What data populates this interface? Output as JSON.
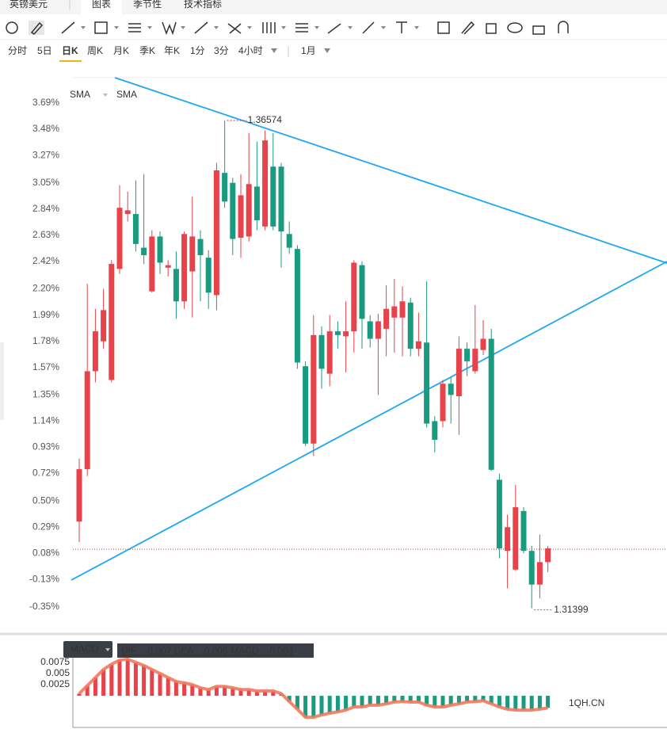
{
  "tabs": [
    "英镑美元",
    "图表",
    "季节性",
    "技术指标"
  ],
  "periods": [
    "分时",
    "5日",
    "日K",
    "周K",
    "月K",
    "季K",
    "年K",
    "1分",
    "3分",
    "4小时"
  ],
  "range_select": "1月",
  "watermark": "1QH.CN",
  "chart_data": [
    {
      "type": "candlestick",
      "legend": [
        "SMA",
        "SMA"
      ],
      "up_color": "#e8424a",
      "down_color": "#1a9a7e",
      "open": [
        0.335,
        0.755,
        1.54,
        1.78,
        1.47,
        2.36,
        2.8,
        2.8,
        2.53,
        2.18,
        2.62,
        2.37,
        2.36,
        2.1,
        2.34,
        2.6,
        2.45,
        2.15,
        3.13,
        3.05,
        2.61,
        2.62,
        3.02,
        2.7,
        3.18,
        3.18,
        2.64,
        2.52,
        1.58,
        0.96,
        1.83,
        1.52,
        1.86,
        1.82,
        1.86,
        2.39,
        1.94,
        1.8,
        1.88,
        1.97,
        1.97,
        2.09,
        1.72,
        1.77,
        1.14,
        1.14,
        1.44,
        1.34,
        1.72,
        1.54,
        1.71,
        1.8,
        0.67,
        0.1,
        -0.05,
        0.42,
        0.1,
        -0.17,
        0.01
      ],
      "high": [
        0.84,
        2.24,
        2.04,
        2.2,
        2.43,
        3.03,
        2.98,
        3.07,
        3.12,
        2.67,
        2.66,
        2.43,
        2.5,
        2.66,
        2.94,
        2.67,
        2.51,
        3.21,
        3.55,
        3.09,
        3.12,
        3.45,
        3.38,
        3.47,
        3.45,
        3.21,
        2.74,
        2.55,
        1.62,
        1.99,
        1.9,
        1.99,
        1.94,
        2.1,
        2.43,
        2.42,
        1.99,
        2.0,
        2.23,
        2.28,
        2.22,
        2.13,
        2.01,
        2.26,
        1.18,
        1.47,
        1.49,
        1.82,
        1.77,
        2.07,
        1.95,
        1.88,
        0.72,
        0.39,
        0.63,
        0.45,
        0.14,
        0.23,
        0.14
      ],
      "low": [
        0.17,
        0.7,
        1.45,
        1.72,
        1.45,
        2.32,
        2.74,
        2.5,
        2.4,
        2.17,
        2.32,
        2.3,
        1.96,
        2.04,
        1.97,
        2.1,
        2.04,
        2.03,
        2.85,
        2.47,
        2.45,
        2.58,
        2.67,
        2.67,
        2.67,
        2.37,
        2.48,
        1.56,
        0.94,
        0.86,
        1.4,
        1.42,
        1.72,
        1.53,
        1.69,
        1.72,
        1.73,
        1.35,
        1.66,
        1.69,
        1.66,
        1.66,
        1.66,
        1.09,
        0.89,
        1.09,
        1.12,
        1.03,
        1.5,
        1.52,
        1.67,
        0.74,
        0.04,
        -0.2,
        -0.06,
        0.08,
        -0.36,
        -0.28,
        -0.07
      ],
      "close": [
        0.755,
        1.54,
        1.86,
        2.03,
        2.4,
        2.85,
        2.83,
        2.56,
        2.47,
        2.62,
        2.41,
        2.39,
        2.1,
        2.64,
        2.62,
        2.47,
        2.17,
        3.15,
        2.9,
        2.6,
        2.95,
        3.04,
        2.75,
        3.39,
        2.7,
        2.66,
        2.53,
        1.61,
        0.96,
        1.83,
        1.56,
        1.86,
        1.83,
        1.86,
        2.41,
        1.96,
        1.8,
        1.94,
        2.04,
        2.06,
        2.1,
        1.72,
        1.78,
        1.12,
        0.99,
        1.44,
        1.35,
        1.72,
        1.62,
        1.72,
        1.8,
        0.75,
        0.12,
        0.29,
        0.45,
        0.1,
        -0.17,
        0.01,
        0.12
      ],
      "ylim": [
        -0.553,
        3.893
      ],
      "yticks": [
        {
          "value": 3.69,
          "label": "3.69%"
        },
        {
          "value": 3.48,
          "label": "3.48%"
        },
        {
          "value": 3.27,
          "label": "3.27%"
        },
        {
          "value": 3.05,
          "label": "3.05%"
        },
        {
          "value": 2.84,
          "label": "2.84%"
        },
        {
          "value": 2.63,
          "label": "2.63%"
        },
        {
          "value": 2.42,
          "label": "2.42%"
        },
        {
          "value": 2.2,
          "label": "2.20%"
        },
        {
          "value": 1.99,
          "label": "1.99%"
        },
        {
          "value": 1.78,
          "label": "1.78%"
        },
        {
          "value": 1.57,
          "label": "1.57%"
        },
        {
          "value": 1.35,
          "label": "1.35%"
        },
        {
          "value": 1.14,
          "label": "1.14%"
        },
        {
          "value": 0.93,
          "label": "0.93%"
        },
        {
          "value": 0.72,
          "label": "0.72%"
        },
        {
          "value": 0.5,
          "label": "0.50%"
        },
        {
          "value": 0.29,
          "label": "0.29%"
        },
        {
          "value": 0.08,
          "label": "0.08%"
        },
        {
          "value": -0.13,
          "label": "-0.13%"
        },
        {
          "value": -0.35,
          "label": "-0.35%"
        }
      ],
      "high_label": "1.36574",
      "low_label": "1.31399",
      "price_line": 0.113
    },
    {
      "type": "bar",
      "title": "MACD",
      "info": "DIF : -0.007   DEA : -0.005   MACD : -0.003",
      "line_color": "#f07a5e",
      "up_color": "#e8424a",
      "down_color": "#1a9a7e",
      "values": [
        0.0005,
        0.0023,
        0.0041,
        0.0059,
        0.0071,
        0.008,
        0.0082,
        0.0075,
        0.0068,
        0.0059,
        0.005,
        0.0041,
        0.0032,
        0.0029,
        0.0025,
        0.0018,
        0.0014,
        0.0021,
        0.0021,
        0.0018,
        0.0014,
        0.0014,
        0.0011,
        0.0011,
        0.0011,
        0.0005,
        -0.0013,
        -0.003,
        -0.0048,
        -0.0048,
        -0.0043,
        -0.0039,
        -0.0036,
        -0.0032,
        -0.0025,
        -0.0025,
        -0.0021,
        -0.0021,
        -0.0018,
        -0.0014,
        -0.0013,
        -0.0014,
        -0.0014,
        -0.0021,
        -0.0025,
        -0.0025,
        -0.0021,
        -0.0018,
        -0.0014,
        -0.0013,
        -0.0011,
        -0.0018,
        -0.0025,
        -0.003,
        -0.0032,
        -0.0032,
        -0.0032,
        -0.003,
        -0.0027
      ],
      "ylim": [
        -0.0071,
        0.0089
      ],
      "yticks": [
        0.0025,
        0.005,
        0.0075
      ]
    }
  ]
}
